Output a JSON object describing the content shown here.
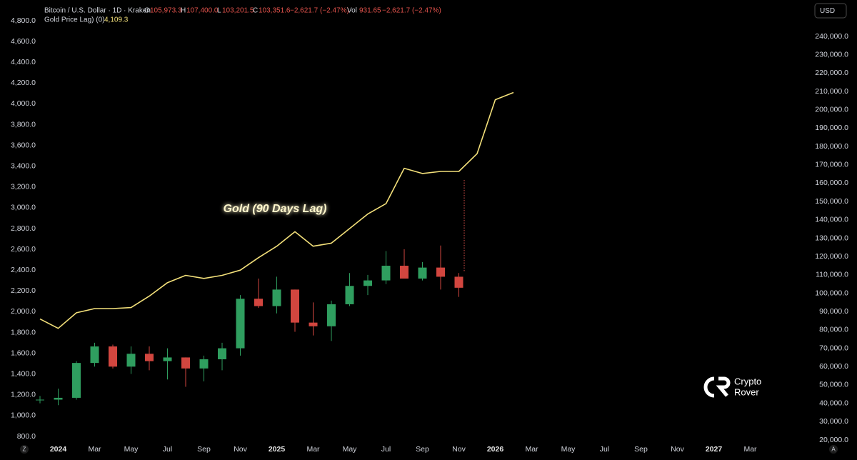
{
  "chart_data": {
    "type": "line",
    "header": {
      "symbol": "Bitcoin / U.S. Dollar · 1D · Kraken",
      "o_key": "O",
      "o_val": "105,973.3",
      "h_key": "H",
      "h_val": "107,400.0",
      "l_key": "L",
      "l_val": "103,201.5",
      "c_key": "C",
      "c_val": "103,351.6",
      "change": "−2,621.7 (−2.47%)",
      "vol_key": "Vol",
      "vol_val": "931.65",
      "vol_change": "−2,621.7 (−2.47%)",
      "indicator": "Gold Price Lag) (0)",
      "indicator_val": "4,109.3",
      "currency": "USD",
      "brand_1": "Crypto",
      "brand_2": "Rover",
      "corner_left": "Z",
      "corner_right": "A"
    },
    "annotation": "Gold (90 Days Lag)",
    "xlim": [
      "2023-10",
      "2027-06"
    ],
    "xticks": [
      {
        "value": "2024-01",
        "label": "2024"
      },
      {
        "value": "2024-03",
        "label": "Mar"
      },
      {
        "value": "2024-05",
        "label": "May"
      },
      {
        "value": "2024-07",
        "label": "Jul"
      },
      {
        "value": "2024-09",
        "label": "Sep"
      },
      {
        "value": "2024-11",
        "label": "Nov"
      },
      {
        "value": "2025-01",
        "label": "2025"
      },
      {
        "value": "2025-03",
        "label": "Mar"
      },
      {
        "value": "2025-05",
        "label": "May"
      },
      {
        "value": "2025-07",
        "label": "Jul"
      },
      {
        "value": "2025-09",
        "label": "Sep"
      },
      {
        "value": "2025-11",
        "label": "Nov"
      },
      {
        "value": "2026-01",
        "label": "2026"
      },
      {
        "value": "2026-03",
        "label": "Mar"
      },
      {
        "value": "2026-05",
        "label": "May"
      },
      {
        "value": "2026-07",
        "label": "Jul"
      },
      {
        "value": "2026-09",
        "label": "Sep"
      },
      {
        "value": "2026-11",
        "label": "Nov"
      },
      {
        "value": "2027-01",
        "label": "2027"
      },
      {
        "value": "2027-03",
        "label": "Mar"
      }
    ],
    "ylim": [
      800,
      4800
    ],
    "yticks": [
      {
        "value": 800,
        "label": "800.0"
      },
      {
        "value": 1000,
        "label": "1,000.0"
      },
      {
        "value": 1200,
        "label": "1,200.0"
      },
      {
        "value": 1400,
        "label": "1,400.0"
      },
      {
        "value": 1600,
        "label": "1,600.0"
      },
      {
        "value": 1800,
        "label": "1,800.0"
      },
      {
        "value": 2000,
        "label": "2,000.0"
      },
      {
        "value": 2200,
        "label": "2,200.0"
      },
      {
        "value": 2400,
        "label": "2,400.0"
      },
      {
        "value": 2600,
        "label": "2,600.0"
      },
      {
        "value": 2800,
        "label": "2,800.0"
      },
      {
        "value": 3000,
        "label": "3,000.0"
      },
      {
        "value": 3200,
        "label": "3,200.0"
      },
      {
        "value": 3400,
        "label": "3,400.0"
      },
      {
        "value": 3600,
        "label": "3,600.0"
      },
      {
        "value": 3800,
        "label": "3,800.0"
      },
      {
        "value": 4000,
        "label": "4,000.0"
      },
      {
        "value": 4200,
        "label": "4,200.0"
      },
      {
        "value": 4400,
        "label": "4,400.0"
      },
      {
        "value": 4600,
        "label": "4,600.0"
      },
      {
        "value": 4800,
        "label": "4,800.0"
      }
    ],
    "y2lim": [
      20000,
      240000
    ],
    "y2ticks": [
      {
        "value": 20000,
        "label": "20,000.0"
      },
      {
        "value": 30000,
        "label": "30,000.0"
      },
      {
        "value": 40000,
        "label": "40,000.0"
      },
      {
        "value": 50000,
        "label": "50,000.0"
      },
      {
        "value": 60000,
        "label": "60,000.0"
      },
      {
        "value": 70000,
        "label": "70,000.0"
      },
      {
        "value": 80000,
        "label": "80,000.0"
      },
      {
        "value": 90000,
        "label": "90,000.0"
      },
      {
        "value": 100000,
        "label": "100,000.0"
      },
      {
        "value": 110000,
        "label": "110,000.0"
      },
      {
        "value": 120000,
        "label": "120,000.0"
      },
      {
        "value": 130000,
        "label": "130,000.0"
      },
      {
        "value": 140000,
        "label": "140,000.0"
      },
      {
        "value": 150000,
        "label": "150,000.0"
      },
      {
        "value": 160000,
        "label": "160,000.0"
      },
      {
        "value": 170000,
        "label": "170,000.0"
      },
      {
        "value": 180000,
        "label": "180,000.0"
      },
      {
        "value": 190000,
        "label": "190,000.0"
      },
      {
        "value": 200000,
        "label": "200,000.0"
      },
      {
        "value": 210000,
        "label": "210,000.0"
      },
      {
        "value": 220000,
        "label": "220,000.0"
      },
      {
        "value": 230000,
        "label": "230,000.0"
      },
      {
        "value": 240000,
        "label": "240,000.0"
      }
    ],
    "series": [
      {
        "name": "Gold Price Lag) (0)",
        "type": "line",
        "axis": "y",
        "color": "#f3e07a",
        "x": [
          "2023-12",
          "2024-01",
          "2024-02",
          "2024-03",
          "2024-04",
          "2024-05",
          "2024-06",
          "2024-07",
          "2024-08",
          "2024-09",
          "2024-10",
          "2024-11",
          "2024-12",
          "2025-01",
          "2025-02",
          "2025-03",
          "2025-04",
          "2025-05",
          "2025-06",
          "2025-07",
          "2025-08",
          "2025-09",
          "2025-10",
          "2025-11",
          "2025-12",
          "2026-01",
          "2026-02"
        ],
        "values": [
          1930,
          1840,
          1990,
          2030,
          2030,
          2040,
          2150,
          2280,
          2350,
          2320,
          2350,
          2400,
          2520,
          2630,
          2770,
          2630,
          2660,
          2800,
          2940,
          3040,
          3380,
          3330,
          3350,
          3350,
          3520,
          4040,
          4109.3
        ]
      },
      {
        "name": "Bitcoin / U.S. Dollar · 1D · Kraken",
        "type": "candlestick",
        "axis": "y2",
        "up_color": "#2f9e5f",
        "down_color": "#d2463f",
        "x": [
          "2023-12",
          "2024-01",
          "2024-02",
          "2024-03",
          "2024-04",
          "2024-05",
          "2024-06",
          "2024-07",
          "2024-08",
          "2024-09",
          "2024-10",
          "2024-11",
          "2024-12",
          "2025-01",
          "2025-02",
          "2025-03",
          "2025-04",
          "2025-05",
          "2025-06",
          "2025-07",
          "2025-08",
          "2025-09",
          "2025-10",
          "2025-11"
        ],
        "open": [
          42000,
          42000,
          43000,
          62000,
          71000,
          60000,
          67000,
          63000,
          65000,
          59000,
          64000,
          70000,
          97000,
          93000,
          102000,
          84000,
          82000,
          94000,
          104000,
          107000,
          115000,
          108000,
          114000,
          109000
        ],
        "high": [
          44000,
          48000,
          63000,
          73000,
          72000,
          71000,
          71000,
          70000,
          65000,
          66000,
          73000,
          99000,
          108000,
          109000,
          102000,
          95000,
          96000,
          111000,
          110000,
          123000,
          124000,
          117000,
          126000,
          111000
        ],
        "low": [
          40000,
          39000,
          42000,
          60000,
          59000,
          56000,
          58000,
          53000,
          49000,
          52000,
          58000,
          66000,
          92000,
          89000,
          79000,
          77000,
          74000,
          93000,
          99000,
          105000,
          108000,
          107000,
          102000,
          98000
        ],
        "close": [
          42000,
          43000,
          62000,
          71000,
          60000,
          67000,
          63000,
          65000,
          59000,
          64000,
          70000,
          97000,
          93000,
          102000,
          84000,
          82000,
          94000,
          104000,
          107000,
          115000,
          108000,
          114000,
          109000,
          103000
        ]
      }
    ]
  }
}
